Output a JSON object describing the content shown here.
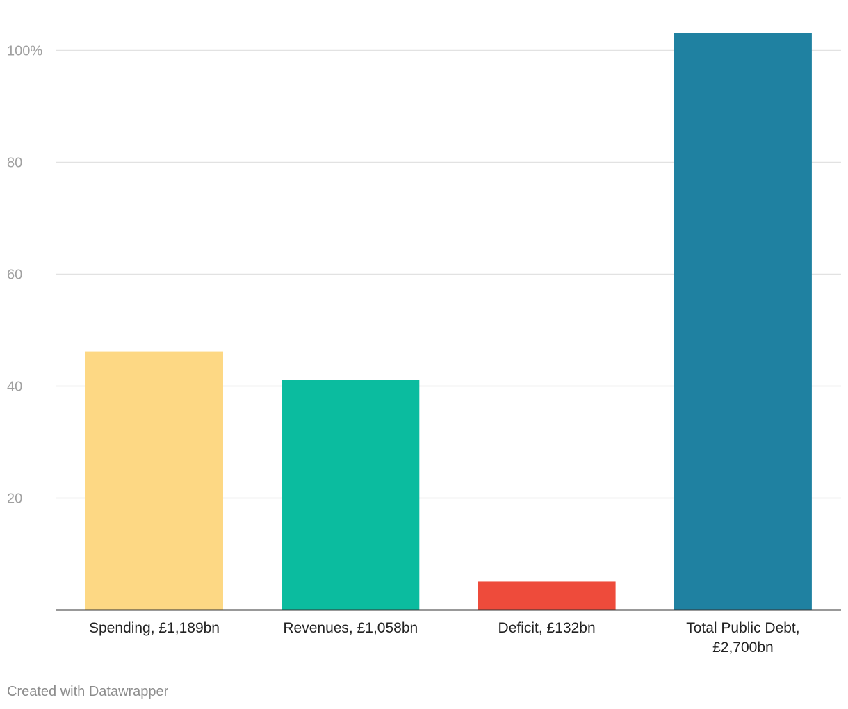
{
  "chart_data": {
    "type": "bar",
    "categories": [
      "Spending, £1,189bn",
      "Revenues, £1,058bn",
      "Deficit, £132bn",
      "Total Public Debt, £2,700bn"
    ],
    "category_lines": [
      [
        "Spending, £1,189bn"
      ],
      [
        "Revenues, £1,058bn"
      ],
      [
        "Deficit, £132bn"
      ],
      [
        "Total Public Debt,",
        "£2,700bn"
      ]
    ],
    "values": [
      46.2,
      41.1,
      5.1,
      103.1
    ],
    "colors": [
      "#fdd884",
      "#0bbc9f",
      "#ee4b3b",
      "#1f81a1"
    ],
    "yticks": [
      20,
      40,
      60,
      80,
      100
    ],
    "ytick_labels": [
      "20",
      "40",
      "60",
      "80",
      "100%"
    ],
    "ylim": [
      0,
      100
    ],
    "grid": true,
    "grid_color": "#e2e2e2",
    "axis_color": "#333333"
  },
  "credit": "Created with Datawrapper"
}
